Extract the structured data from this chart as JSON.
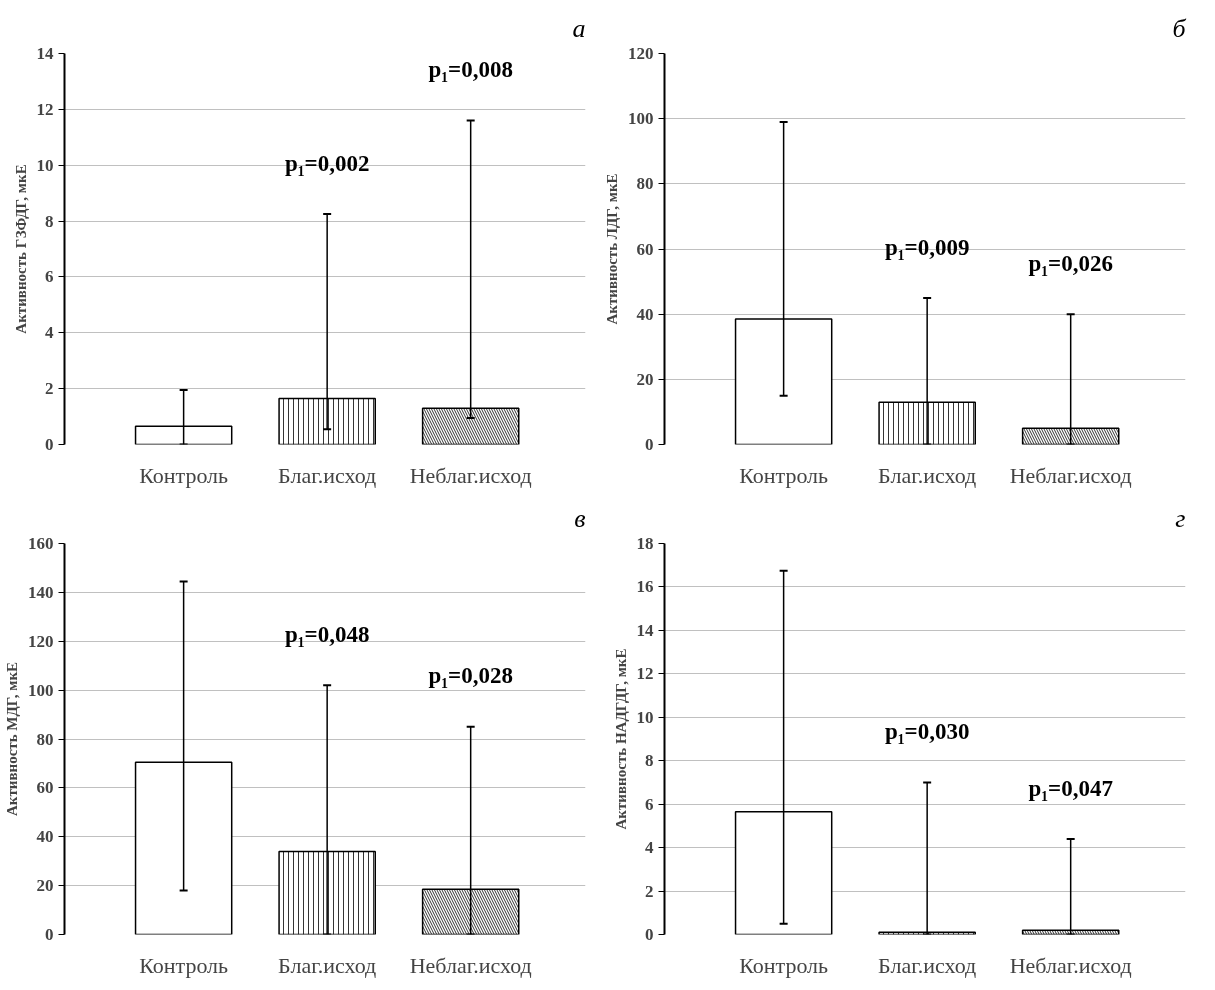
{
  "chart_data": [
    {
      "type": "bar",
      "title": "а",
      "ylabel": "Активность ГЗФДГ, мкЕ",
      "categories": [
        "Контроль",
        "Благ.исход",
        "Неблаг.исход"
      ],
      "values": [
        0.65,
        1.65,
        1.3
      ],
      "errors": [
        [
          0,
          1.95
        ],
        [
          0.55,
          8.25
        ],
        [
          0.95,
          11.6
        ]
      ],
      "colors": [
        "#ffffff",
        "#ffffff",
        "#ffffff"
      ],
      "ylim": [
        0,
        14
      ],
      "yticks": [
        0,
        2,
        4,
        6,
        8,
        10,
        12,
        14
      ],
      "grid": "y",
      "annotations": [
        "p₁=0,002",
        "p₁=0,008"
      ]
    },
    {
      "type": "bar",
      "title": "б",
      "ylabel": "Активность ЛДГ, мкЕ",
      "categories": [
        "Контроль",
        "Благ.исход",
        "Неблаг.исход"
      ],
      "values": [
        38.5,
        13,
        5
      ],
      "errors": [
        [
          15,
          99
        ],
        [
          0,
          45
        ],
        [
          0,
          40
        ]
      ],
      "colors": [
        "#ffffff",
        "#ffffff",
        "#ffffff"
      ],
      "ylim": [
        0,
        120
      ],
      "yticks": [
        0,
        20,
        40,
        60,
        80,
        100,
        120
      ],
      "grid": "y",
      "annotations": [
        "p₁=0,009",
        "p₁=0,026"
      ]
    },
    {
      "type": "bar",
      "title": "в",
      "ylabel": "Активность МДГ, мкЕ",
      "categories": [
        "Контроль",
        "Благ.исход",
        "Неблаг.исход"
      ],
      "values": [
        70.5,
        34,
        18.5
      ],
      "errors": [
        [
          18,
          144.5
        ],
        [
          0,
          102
        ],
        [
          0,
          85
        ]
      ],
      "colors": [
        "#ffffff",
        "#ffffff",
        "#ffffff"
      ],
      "ylim": [
        0,
        160
      ],
      "yticks": [
        0,
        20,
        40,
        60,
        80,
        100,
        120,
        140,
        160
      ],
      "grid": "y",
      "annotations": [
        "p₁=0,048",
        "p₁=0,028"
      ]
    },
    {
      "type": "bar",
      "title": "г",
      "ylabel": "Активность НАДГДГ, мкЕ",
      "categories": [
        "Контроль",
        "Благ.исход",
        "Неблаг.исход"
      ],
      "values": [
        5.65,
        0.1,
        0.2
      ],
      "errors": [
        [
          0.5,
          16.75
        ],
        [
          0,
          7
        ],
        [
          0,
          4.4
        ]
      ],
      "colors": [
        "#ffffff",
        "#ffffff",
        "#ffffff"
      ],
      "ylim": [
        0,
        18
      ],
      "yticks": [
        0,
        2,
        4,
        6,
        8,
        10,
        12,
        14,
        16,
        18
      ],
      "grid": "y",
      "annotations": [
        "p₁=0,030",
        "p₁=0,047"
      ]
    }
  ]
}
